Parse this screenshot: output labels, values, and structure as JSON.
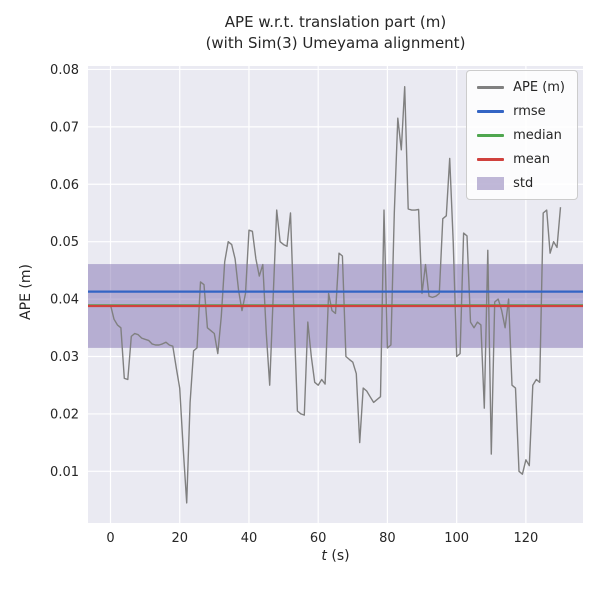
{
  "title": {
    "line1": "APE w.r.t. translation part (m)",
    "line2": "(with Sim(3) Umeyama alignment)"
  },
  "colors": {
    "plot_bg": "#eaeaf2",
    "grid": "#ffffff",
    "text": "#262626",
    "ape": "#808080",
    "rmse": "#3465c4",
    "median": "#4fa64f",
    "mean": "#d0413d",
    "std_fill": "rgba(129,114,178,0.5)"
  },
  "legend": {
    "items": [
      {
        "label": "APE (m)",
        "type": "line"
      },
      {
        "label": "rmse",
        "type": "line"
      },
      {
        "label": "median",
        "type": "line"
      },
      {
        "label": "mean",
        "type": "line"
      },
      {
        "label": "std",
        "type": "patch"
      }
    ]
  },
  "chart_data": {
    "type": "line",
    "title": "APE w.r.t. translation part (m) (with Sim(3) Umeyama alignment)",
    "xlabel": "t (s)",
    "xlabel_var": "t",
    "xlabel_rest": " (s)",
    "ylabel": "APE (m)",
    "xlim": [
      -6.5,
      136.5
    ],
    "ylim": [
      0.001,
      0.0806
    ],
    "xticks": [
      0,
      20,
      40,
      60,
      80,
      100,
      120
    ],
    "yticks": [
      0.01,
      0.02,
      0.03,
      0.04,
      0.05,
      0.06,
      0.07,
      0.08
    ],
    "grid": true,
    "legend_position": "upper right",
    "series_name": "APE (m)",
    "stats": {
      "rmse": 0.0413,
      "median": 0.0389,
      "mean": 0.0388,
      "std": 0.0073
    },
    "std_band": [
      0.0315,
      0.0461
    ],
    "points": [
      [
        0,
        0.039
      ],
      [
        1,
        0.0365
      ],
      [
        2,
        0.0355
      ],
      [
        3,
        0.035
      ],
      [
        4,
        0.0262
      ],
      [
        5,
        0.026
      ],
      [
        6,
        0.0335
      ],
      [
        7,
        0.034
      ],
      [
        8,
        0.0338
      ],
      [
        9,
        0.0332
      ],
      [
        10,
        0.033
      ],
      [
        11,
        0.0328
      ],
      [
        12,
        0.0322
      ],
      [
        13,
        0.032
      ],
      [
        14,
        0.032
      ],
      [
        15,
        0.0322
      ],
      [
        16,
        0.0325
      ],
      [
        17,
        0.032
      ],
      [
        18,
        0.0318
      ],
      [
        19,
        0.028
      ],
      [
        20,
        0.0245
      ],
      [
        21,
        0.014
      ],
      [
        22,
        0.0045
      ],
      [
        23,
        0.022
      ],
      [
        24,
        0.031
      ],
      [
        25,
        0.0315
      ],
      [
        26,
        0.043
      ],
      [
        27,
        0.0425
      ],
      [
        28,
        0.035
      ],
      [
        29,
        0.0345
      ],
      [
        30,
        0.034
      ],
      [
        31,
        0.0305
      ],
      [
        32,
        0.037
      ],
      [
        33,
        0.0465
      ],
      [
        34,
        0.05
      ],
      [
        35,
        0.0495
      ],
      [
        36,
        0.047
      ],
      [
        37,
        0.0415
      ],
      [
        38,
        0.038
      ],
      [
        39,
        0.041
      ],
      [
        40,
        0.052
      ],
      [
        41,
        0.0518
      ],
      [
        42,
        0.047
      ],
      [
        43,
        0.044
      ],
      [
        44,
        0.046
      ],
      [
        45,
        0.034
      ],
      [
        46,
        0.025
      ],
      [
        47,
        0.0405
      ],
      [
        48,
        0.0555
      ],
      [
        49,
        0.05
      ],
      [
        50,
        0.0495
      ],
      [
        51,
        0.0492
      ],
      [
        52,
        0.055
      ],
      [
        53,
        0.037
      ],
      [
        54,
        0.0205
      ],
      [
        55,
        0.02
      ],
      [
        56,
        0.0198
      ],
      [
        57,
        0.036
      ],
      [
        58,
        0.03
      ],
      [
        59,
        0.0255
      ],
      [
        60,
        0.025
      ],
      [
        61,
        0.026
      ],
      [
        62,
        0.0252
      ],
      [
        63,
        0.041
      ],
      [
        64,
        0.038
      ],
      [
        65,
        0.0375
      ],
      [
        66,
        0.048
      ],
      [
        67,
        0.0475
      ],
      [
        68,
        0.03
      ],
      [
        69,
        0.0295
      ],
      [
        70,
        0.029
      ],
      [
        71,
        0.027
      ],
      [
        72,
        0.015
      ],
      [
        73,
        0.0245
      ],
      [
        74,
        0.024
      ],
      [
        75,
        0.023
      ],
      [
        76,
        0.022
      ],
      [
        77,
        0.0225
      ],
      [
        78,
        0.023
      ],
      [
        79,
        0.0555
      ],
      [
        80,
        0.0315
      ],
      [
        81,
        0.032
      ],
      [
        82,
        0.055
      ],
      [
        83,
        0.0715
      ],
      [
        84,
        0.066
      ],
      [
        85,
        0.077
      ],
      [
        86,
        0.0557
      ],
      [
        87,
        0.0555
      ],
      [
        88,
        0.0555
      ],
      [
        89,
        0.0556
      ],
      [
        90,
        0.041
      ],
      [
        91,
        0.046
      ],
      [
        92,
        0.0405
      ],
      [
        93,
        0.0403
      ],
      [
        94,
        0.0405
      ],
      [
        95,
        0.041
      ],
      [
        96,
        0.054
      ],
      [
        97,
        0.0545
      ],
      [
        98,
        0.0645
      ],
      [
        99,
        0.05
      ],
      [
        100,
        0.03
      ],
      [
        101,
        0.0305
      ],
      [
        102,
        0.0515
      ],
      [
        103,
        0.051
      ],
      [
        104,
        0.036
      ],
      [
        105,
        0.035
      ],
      [
        106,
        0.036
      ],
      [
        107,
        0.0355
      ],
      [
        108,
        0.021
      ],
      [
        109,
        0.0485
      ],
      [
        110,
        0.013
      ],
      [
        111,
        0.0395
      ],
      [
        112,
        0.04
      ],
      [
        113,
        0.038
      ],
      [
        114,
        0.035
      ],
      [
        115,
        0.04
      ],
      [
        116,
        0.025
      ],
      [
        117,
        0.0245
      ],
      [
        118,
        0.01
      ],
      [
        119,
        0.0095
      ],
      [
        120,
        0.012
      ],
      [
        121,
        0.011
      ],
      [
        122,
        0.025
      ],
      [
        123,
        0.026
      ],
      [
        124,
        0.0255
      ],
      [
        125,
        0.055
      ],
      [
        126,
        0.0555
      ],
      [
        127,
        0.048
      ],
      [
        128,
        0.05
      ],
      [
        129,
        0.049
      ],
      [
        130,
        0.056
      ]
    ]
  }
}
